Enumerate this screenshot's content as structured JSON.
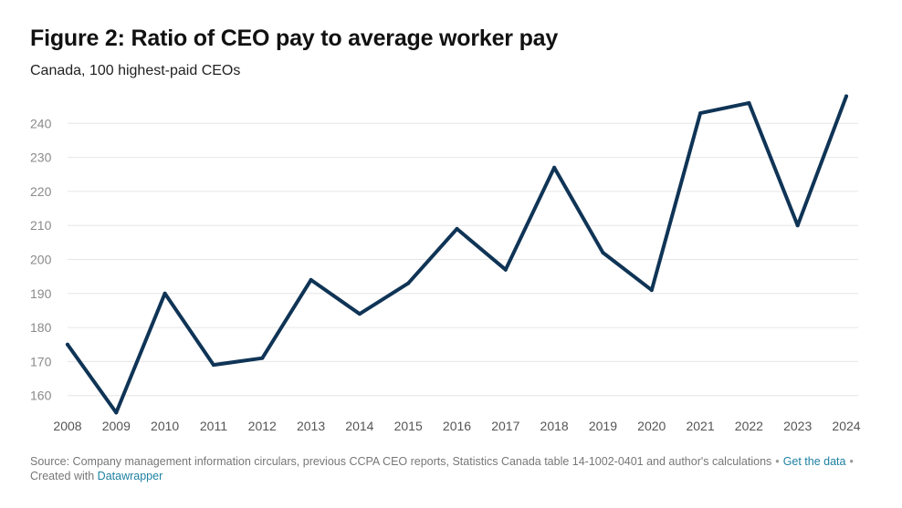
{
  "header": {
    "title": "Figure 2: Ratio of CEO pay to average worker pay",
    "subtitle": "Canada, 100 highest-paid CEOs"
  },
  "footer": {
    "source_text": "Source: Company management information circulars, previous CCPA CEO reports, Statistics Canada table 14-1002-0401 and author's calculations",
    "get_data_link": "Get the data",
    "created_with_text": "Created with",
    "datawrapper_link": "Datawrapper"
  },
  "colors": {
    "line": "#0f3456",
    "grid": "#e6e6e6",
    "tick_label": "#8a8a8a",
    "link": "#1d81a2"
  },
  "chart_data": {
    "type": "line",
    "title": "Figure 2: Ratio of CEO pay to average worker pay",
    "subtitle": "Canada, 100 highest-paid CEOs",
    "xlabel": "",
    "ylabel": "",
    "x": [
      "2008",
      "2009",
      "2010",
      "2011",
      "2012",
      "2013",
      "2014",
      "2015",
      "2016",
      "2017",
      "2018",
      "2019",
      "2020",
      "2021",
      "2022",
      "2023",
      "2024"
    ],
    "series": [
      {
        "values": [
          175,
          155,
          190,
          169,
          171,
          194,
          184,
          193,
          209,
          197,
          227,
          202,
          191,
          243,
          246,
          210,
          248
        ]
      }
    ],
    "yticks": [
      160,
      170,
      180,
      190,
      200,
      210,
      220,
      230,
      240
    ],
    "ylim": [
      150,
      250
    ],
    "grid": true,
    "legend": "none"
  }
}
